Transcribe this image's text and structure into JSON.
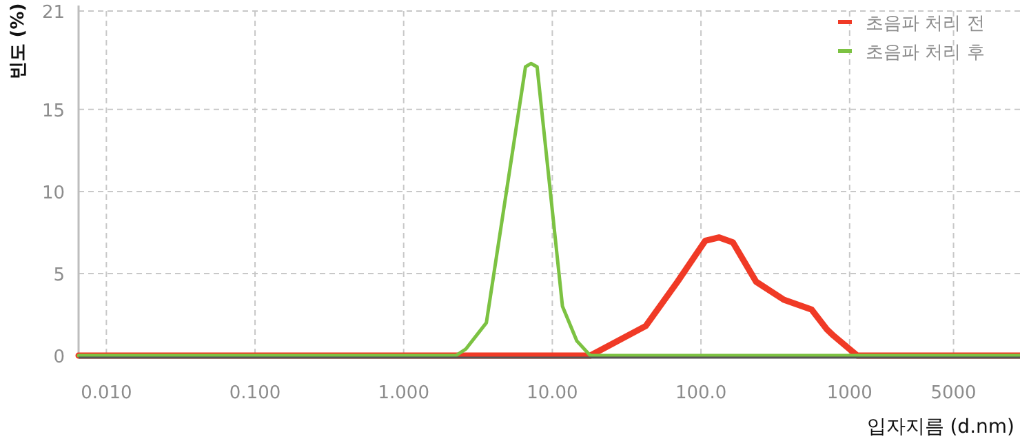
{
  "chart_data": {
    "type": "line",
    "xlabel": "입자지름 (d.nm)",
    "ylabel": "빈도 (%)",
    "log": "x",
    "grid": true,
    "legend": "top right",
    "xlim": [
      0.0065,
      14000
    ],
    "ylim": [
      0,
      21
    ],
    "xticks": [
      {
        "value": 0.01,
        "label": "0.010"
      },
      {
        "value": 0.1,
        "label": "0.100"
      },
      {
        "value": 1,
        "label": "1.000"
      },
      {
        "value": 10,
        "label": "10.00"
      },
      {
        "value": 100,
        "label": "100.0"
      },
      {
        "value": 1000,
        "label": "1000"
      },
      {
        "value": 5000,
        "label": "5000"
      }
    ],
    "yticks": [
      0,
      5,
      10,
      15,
      21
    ],
    "series": [
      {
        "name": "초음파 처리 전",
        "color": "#f03a26",
        "x": [
          0.0065,
          18,
          42.5,
          69.5,
          107,
          132,
          164,
          235,
          361,
          555,
          703,
          782,
          1125,
          14000
        ],
        "values": [
          0,
          0,
          1.8,
          4.5,
          7.0,
          7.2,
          6.9,
          4.5,
          3.4,
          2.8,
          1.6,
          1.2,
          0,
          0
        ]
      },
      {
        "name": "초음파 처리 후",
        "color": "#7cc242",
        "x": [
          0.0065,
          2.25,
          2.62,
          3.6,
          6.6,
          7.2,
          7.9,
          11.7,
          14.6,
          18,
          14000
        ],
        "values": [
          0,
          0,
          0.4,
          2.0,
          17.6,
          17.8,
          17.6,
          3.0,
          0.9,
          0,
          0
        ]
      }
    ]
  }
}
